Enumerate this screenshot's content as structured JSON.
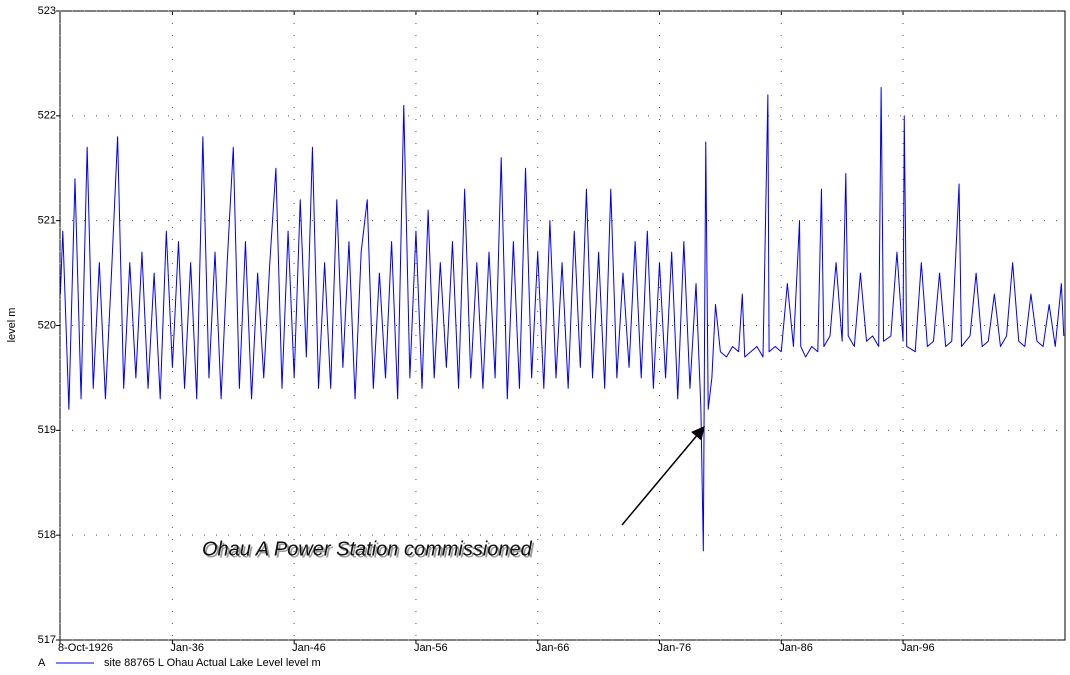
{
  "chart_data": {
    "type": "line",
    "y_label": "level m",
    "annotation": "Ohau A Power Station commissioned",
    "xlim": [
      1926.77,
      2009.3
    ],
    "xticks": [
      {
        "value": 1926.77,
        "label": "8-Oct-1926"
      },
      {
        "value": 1936,
        "label": "Jan-36"
      },
      {
        "value": 1946,
        "label": "Jan-46"
      },
      {
        "value": 1956,
        "label": "Jan-56"
      },
      {
        "value": 1966,
        "label": "Jan-66"
      },
      {
        "value": 1976,
        "label": "Jan-76"
      },
      {
        "value": 1986,
        "label": "Jan-86"
      },
      {
        "value": 1996,
        "label": "Jan-96"
      }
    ],
    "ylim": [
      517,
      523
    ],
    "yticks": [
      517,
      518,
      519,
      520,
      521,
      522,
      523
    ],
    "grid": true,
    "x": [
      1926.8,
      1927.0,
      1927.5,
      1928.0,
      1928.5,
      1929.0,
      1929.5,
      1930.0,
      1930.5,
      1931.0,
      1931.5,
      1932.0,
      1932.5,
      1933.0,
      1933.5,
      1934.0,
      1934.5,
      1935.0,
      1935.5,
      1936.0,
      1936.5,
      1937.0,
      1937.5,
      1938.0,
      1938.5,
      1939.0,
      1939.5,
      1940.0,
      1940.5,
      1941.0,
      1941.5,
      1942.0,
      1942.5,
      1943.0,
      1943.5,
      1944.0,
      1944.5,
      1945.0,
      1945.5,
      1946.0,
      1946.5,
      1947.0,
      1947.5,
      1948.0,
      1948.5,
      1949.0,
      1949.5,
      1950.0,
      1950.5,
      1951.0,
      1951.5,
      1952.0,
      1952.5,
      1953.0,
      1953.5,
      1954.0,
      1954.5,
      1955.0,
      1955.5,
      1956.0,
      1956.5,
      1957.0,
      1957.5,
      1958.0,
      1958.5,
      1959.0,
      1959.5,
      1960.0,
      1960.5,
      1961.0,
      1961.5,
      1962.0,
      1962.5,
      1963.0,
      1963.5,
      1964.0,
      1964.5,
      1965.0,
      1965.5,
      1966.0,
      1966.5,
      1967.0,
      1967.5,
      1968.0,
      1968.5,
      1969.0,
      1969.5,
      1970.0,
      1970.5,
      1971.0,
      1971.5,
      1972.0,
      1972.5,
      1973.0,
      1973.5,
      1974.0,
      1974.5,
      1975.0,
      1975.5,
      1976.0,
      1976.5,
      1977.0,
      1977.5,
      1978.0,
      1978.5,
      1979.0,
      1979.4,
      1979.6,
      1979.7,
      1979.8,
      1980.0,
      1980.3,
      1980.6,
      1981.0,
      1981.5,
      1982.0,
      1982.5,
      1982.8,
      1983.0,
      1983.5,
      1984.0,
      1984.5,
      1984.9,
      1985.0,
      1985.5,
      1986.0,
      1986.5,
      1987.0,
      1987.5,
      1987.6,
      1988.0,
      1988.5,
      1989.0,
      1989.3,
      1989.5,
      1990.0,
      1990.5,
      1991.0,
      1991.3,
      1991.5,
      1992.0,
      1992.5,
      1993.0,
      1993.5,
      1994.0,
      1994.2,
      1994.4,
      1995.0,
      1995.5,
      1996.0,
      1996.1,
      1996.3,
      1997.0,
      1997.5,
      1998.0,
      1998.5,
      1999.0,
      1999.5,
      2000.0,
      2000.6,
      2000.8,
      2001.5,
      2002.0,
      2002.5,
      2003.0,
      2003.5,
      2004.0,
      2004.5,
      2005.0,
      2005.5,
      2006.0,
      2006.5,
      2007.0,
      2007.5,
      2008.0,
      2008.5,
      2009.0,
      2009.2
    ],
    "series": [
      {
        "name": "site 88765 L Ohau Actual Lake Level   level m",
        "marker_label": "A",
        "color": "#0000ee",
        "values": [
          520.3,
          520.9,
          519.2,
          521.4,
          519.3,
          521.7,
          519.4,
          520.6,
          519.3,
          520.5,
          521.8,
          519.4,
          520.6,
          519.5,
          520.7,
          519.4,
          520.5,
          519.3,
          520.9,
          519.6,
          520.8,
          519.4,
          520.6,
          519.3,
          521.8,
          519.5,
          520.7,
          519.3,
          520.6,
          521.7,
          519.4,
          520.8,
          519.3,
          520.5,
          519.5,
          520.6,
          521.5,
          519.4,
          520.9,
          519.5,
          521.2,
          519.7,
          521.7,
          519.4,
          520.6,
          519.4,
          521.2,
          519.6,
          520.8,
          519.3,
          520.7,
          521.2,
          519.4,
          520.5,
          519.5,
          520.8,
          519.3,
          522.1,
          519.5,
          520.9,
          519.4,
          521.1,
          519.5,
          520.6,
          519.6,
          520.8,
          519.4,
          521.3,
          519.5,
          520.6,
          519.4,
          520.7,
          519.5,
          521.6,
          519.3,
          520.8,
          519.4,
          521.5,
          519.5,
          520.7,
          519.4,
          521.0,
          519.5,
          520.6,
          519.4,
          520.9,
          519.6,
          521.3,
          519.5,
          520.7,
          519.4,
          521.3,
          519.5,
          520.5,
          519.6,
          520.8,
          519.5,
          520.9,
          519.4,
          520.6,
          519.5,
          520.7,
          519.3,
          520.8,
          519.4,
          520.4,
          519.2,
          517.85,
          519.9,
          521.75,
          519.2,
          519.5,
          520.2,
          519.75,
          519.7,
          519.8,
          519.75,
          520.3,
          519.7,
          519.75,
          519.8,
          519.7,
          522.2,
          519.75,
          519.8,
          519.75,
          520.4,
          519.8,
          521.0,
          519.8,
          519.7,
          519.8,
          519.75,
          521.3,
          519.8,
          519.9,
          520.6,
          519.85,
          521.45,
          519.9,
          519.8,
          520.5,
          519.85,
          519.9,
          519.8,
          522.27,
          519.85,
          519.9,
          520.7,
          519.85,
          522.0,
          519.8,
          519.75,
          520.6,
          519.8,
          519.85,
          520.5,
          519.8,
          519.85,
          521.35,
          519.8,
          519.9,
          520.5,
          519.8,
          519.85,
          520.3,
          519.8,
          519.9,
          520.6,
          519.85,
          519.8,
          520.3,
          519.85,
          519.8,
          520.2,
          519.8,
          520.4,
          519.9
        ]
      }
    ]
  }
}
